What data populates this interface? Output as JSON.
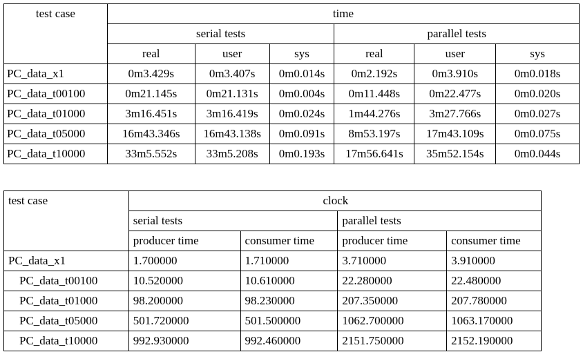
{
  "table1": {
    "col_test_case": "test case",
    "group_time": "time",
    "serial": "serial tests",
    "parallel": "parallel tests",
    "sub": [
      "real",
      "user",
      "sys",
      "real",
      "user",
      "sys"
    ],
    "rows": [
      [
        "PC_data_x1",
        "0m3.429s",
        "0m3.407s",
        "0m0.014s",
        "0m2.192s",
        "0m3.910s",
        "0m0.018s"
      ],
      [
        "PC_data_t00100",
        "0m21.145s",
        "0m21.131s",
        "0m0.004s",
        "0m11.448s",
        "0m22.477s",
        "0m0.020s"
      ],
      [
        "PC_data_t01000",
        "3m16.451s",
        "3m16.419s",
        "0m0.024s",
        "1m44.276s",
        "3m27.766s",
        "0m0.027s"
      ],
      [
        "PC_data_t05000",
        "16m43.346s",
        "16m43.138s",
        "0m0.091s",
        "8m53.197s",
        "17m43.109s",
        "0m0.075s"
      ],
      [
        "PC_data_t10000",
        "33m5.552s",
        "33m5.208s",
        "0m0.193s",
        "17m56.641s",
        "35m52.154s",
        "0m0.044s"
      ]
    ]
  },
  "table2": {
    "col_test_case": "test case",
    "group_clock": "clock",
    "serial": "serial tests",
    "parallel": "parallel tests",
    "sub": [
      "producer time",
      "consumer time",
      "producer time",
      "consumer time"
    ],
    "rows": [
      [
        "PC_data_x1",
        "1.700000",
        "1.710000",
        "3.710000",
        "3.910000"
      ],
      [
        "PC_data_t00100",
        "10.520000",
        "10.610000",
        "22.280000",
        "22.480000"
      ],
      [
        "PC_data_t01000",
        "98.200000",
        "98.230000",
        "207.350000",
        "207.780000"
      ],
      [
        "PC_data_t05000",
        "501.720000",
        "501.500000",
        "1062.700000",
        "1063.170000"
      ],
      [
        "PC_data_t10000",
        "992.930000",
        "992.460000",
        "2151.750000",
        "2152.190000"
      ]
    ]
  }
}
